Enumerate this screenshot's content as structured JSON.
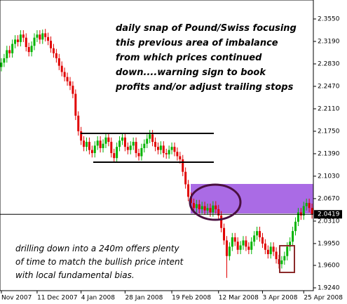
{
  "chart_data": {
    "type": "candlestick",
    "categories": [
      "Nov 2007",
      null,
      null,
      null,
      null,
      null,
      null,
      null,
      null,
      null,
      null,
      null,
      null,
      "11 Dec 2007",
      null,
      null,
      null,
      null,
      null,
      null,
      null,
      null,
      null,
      null,
      null,
      null,
      null,
      null,
      null,
      "4 Jan 2008",
      null,
      null,
      null,
      null,
      null,
      null,
      null,
      null,
      null,
      null,
      null,
      null,
      null,
      null,
      null,
      "28 Jan 2008",
      null,
      null,
      null,
      null,
      null,
      null,
      null,
      null,
      null,
      null,
      null,
      null,
      null,
      null,
      null,
      null,
      "19 Feb 2008",
      null,
      null,
      null,
      null,
      null,
      null,
      null,
      null,
      null,
      null,
      null,
      null,
      null,
      null,
      null,
      null,
      "12 Mar 2008",
      null,
      null,
      null,
      null,
      null,
      null,
      null,
      null,
      null,
      null,
      null,
      null,
      null,
      null,
      null,
      "3 Apr 2008",
      null,
      null,
      null,
      null,
      null,
      null,
      null,
      null,
      null,
      null,
      null,
      null,
      null,
      null,
      "25 Apr 2008",
      null,
      null,
      null
    ],
    "open": [
      2.278,
      2.285,
      2.292,
      2.305,
      2.3,
      2.315,
      2.322,
      2.318,
      2.33,
      2.325,
      2.31,
      2.302,
      2.312,
      2.325,
      2.33,
      2.322,
      2.332,
      2.326,
      2.32,
      2.308,
      2.3,
      2.292,
      2.28,
      2.27,
      2.262,
      2.255,
      2.248,
      2.235,
      2.2,
      2.175,
      2.16,
      2.15,
      2.158,
      2.145,
      2.14,
      2.152,
      2.16,
      2.148,
      2.155,
      2.165,
      2.158,
      2.14,
      2.132,
      2.15,
      2.16,
      2.165,
      2.15,
      2.145,
      2.152,
      2.158,
      2.14,
      2.135,
      2.148,
      2.155,
      2.163,
      2.17,
      2.158,
      2.15,
      2.145,
      2.152,
      2.14,
      2.138,
      2.145,
      2.15,
      2.142,
      2.135,
      2.13,
      2.11,
      2.09,
      2.07,
      2.06,
      2.052,
      2.058,
      2.05,
      2.055,
      2.048,
      2.052,
      2.045,
      2.056,
      2.05,
      2.04,
      2.02,
      2.0,
      1.975,
      1.99,
      2.005,
      1.998,
      1.985,
      1.992,
      2.0,
      1.99,
      1.985,
      1.998,
      2.008,
      2.015,
      2.005,
      1.995,
      1.985,
      1.978,
      1.99,
      1.982,
      1.97,
      1.962,
      1.968,
      1.975,
      1.99,
      1.998,
      2.015,
      2.03,
      2.045,
      2.04,
      2.055,
      2.06,
      2.052
    ],
    "high": [
      2.292,
      2.299,
      2.312,
      2.312,
      2.322,
      2.329,
      2.329,
      2.337,
      2.337,
      2.332,
      2.317,
      2.319,
      2.332,
      2.337,
      2.337,
      2.338,
      2.339,
      2.333,
      2.327,
      2.315,
      2.307,
      2.299,
      2.287,
      2.277,
      2.269,
      2.262,
      2.255,
      2.242,
      2.207,
      2.182,
      2.167,
      2.165,
      2.165,
      2.152,
      2.159,
      2.167,
      2.167,
      2.162,
      2.172,
      2.172,
      2.165,
      2.147,
      2.157,
      2.167,
      2.172,
      2.172,
      2.157,
      2.159,
      2.165,
      2.165,
      2.147,
      2.155,
      2.162,
      2.17,
      2.177,
      2.177,
      2.165,
      2.157,
      2.159,
      2.159,
      2.147,
      2.152,
      2.157,
      2.157,
      2.149,
      2.142,
      2.137,
      2.117,
      2.097,
      2.077,
      2.067,
      2.065,
      2.065,
      2.062,
      2.062,
      2.059,
      2.059,
      2.063,
      2.063,
      2.057,
      2.047,
      2.027,
      2.007,
      1.997,
      2.012,
      2.012,
      2.005,
      1.999,
      2.007,
      2.007,
      1.997,
      2.005,
      2.015,
      2.022,
      2.022,
      2.012,
      2.002,
      1.992,
      1.997,
      1.997,
      1.989,
      1.977,
      1.975,
      1.982,
      1.997,
      2.005,
      2.022,
      2.037,
      2.052,
      2.052,
      2.062,
      2.067,
      2.067,
      2.059
    ],
    "low": [
      2.271,
      2.278,
      2.285,
      2.293,
      2.293,
      2.308,
      2.311,
      2.311,
      2.318,
      2.303,
      2.295,
      2.295,
      2.305,
      2.318,
      2.315,
      2.315,
      2.319,
      2.313,
      2.301,
      2.293,
      2.285,
      2.273,
      2.263,
      2.255,
      2.248,
      2.241,
      2.228,
      2.193,
      2.168,
      2.153,
      2.143,
      2.143,
      2.138,
      2.133,
      2.133,
      2.145,
      2.141,
      2.141,
      2.148,
      2.151,
      2.133,
      2.125,
      2.125,
      2.143,
      2.153,
      2.143,
      2.138,
      2.138,
      2.145,
      2.133,
      2.128,
      2.128,
      2.141,
      2.148,
      2.156,
      2.151,
      2.143,
      2.138,
      2.138,
      2.133,
      2.131,
      2.131,
      2.138,
      2.135,
      2.128,
      2.123,
      2.103,
      2.083,
      2.063,
      2.053,
      2.045,
      2.045,
      2.043,
      2.043,
      2.041,
      2.041,
      2.038,
      2.038,
      2.043,
      2.033,
      2.013,
      1.993,
      1.94,
      1.968,
      1.983,
      1.991,
      1.978,
      1.978,
      1.985,
      1.983,
      1.978,
      1.978,
      1.991,
      2.001,
      1.998,
      1.988,
      1.978,
      1.971,
      1.971,
      1.975,
      1.963,
      1.955,
      1.955,
      1.961,
      1.968,
      1.983,
      1.991,
      2.008,
      2.023,
      2.033,
      2.033,
      2.048,
      2.045,
      2.035
    ],
    "close": [
      2.285,
      2.292,
      2.305,
      2.3,
      2.315,
      2.322,
      2.318,
      2.33,
      2.325,
      2.31,
      2.302,
      2.312,
      2.325,
      2.33,
      2.322,
      2.332,
      2.326,
      2.32,
      2.308,
      2.3,
      2.292,
      2.28,
      2.27,
      2.262,
      2.255,
      2.248,
      2.235,
      2.2,
      2.175,
      2.16,
      2.15,
      2.158,
      2.145,
      2.14,
      2.152,
      2.16,
      2.148,
      2.155,
      2.165,
      2.158,
      2.14,
      2.132,
      2.15,
      2.16,
      2.165,
      2.15,
      2.145,
      2.152,
      2.158,
      2.14,
      2.135,
      2.148,
      2.155,
      2.163,
      2.17,
      2.158,
      2.15,
      2.145,
      2.152,
      2.14,
      2.138,
      2.145,
      2.15,
      2.142,
      2.135,
      2.13,
      2.11,
      2.09,
      2.07,
      2.06,
      2.052,
      2.058,
      2.05,
      2.055,
      2.048,
      2.052,
      2.045,
      2.056,
      2.05,
      2.04,
      2.02,
      2.0,
      1.975,
      1.99,
      2.005,
      1.998,
      1.985,
      1.992,
      2.0,
      1.99,
      1.985,
      1.998,
      2.008,
      2.015,
      2.005,
      1.995,
      1.985,
      1.978,
      1.99,
      1.982,
      1.97,
      1.962,
      1.968,
      1.975,
      1.99,
      1.998,
      2.015,
      2.03,
      2.045,
      2.04,
      2.055,
      2.06,
      2.052,
      2.042
    ],
    "up_color": "#00b400",
    "down_color": "#e00000",
    "ylim": [
      1.9195,
      2.3854
    ],
    "yticks": [
      {
        "value": 2.355,
        "label": "2.3550"
      },
      {
        "value": 2.319,
        "label": "2.3190"
      },
      {
        "value": 2.283,
        "label": "2.2830"
      },
      {
        "value": 2.247,
        "label": "2.2470"
      },
      {
        "value": 2.211,
        "label": "2.2110"
      },
      {
        "value": 2.175,
        "label": "2.1750"
      },
      {
        "value": 2.139,
        "label": "2.1390"
      },
      {
        "value": 2.103,
        "label": "2.1030"
      },
      {
        "value": 2.067,
        "label": "2.0670"
      },
      {
        "value": 2.031,
        "label": "2.0310"
      },
      {
        "value": 1.995,
        "label": "1.9950"
      },
      {
        "value": 1.96,
        "label": "1.9600"
      },
      {
        "value": 1.924,
        "label": "1.9240"
      }
    ],
    "last_price": 2.0419,
    "annotations": [
      [
        "daily snap of Pound/Swiss focusing",
        "this previous area of imbalance",
        "from which prices continued",
        "down....warning sign to book",
        "profits and/or adjust trailing stops"
      ],
      [
        "drilling down into a 240m offers plenty",
        "of time to match the bullish price intent",
        "with local fundamental bias."
      ]
    ]
  }
}
